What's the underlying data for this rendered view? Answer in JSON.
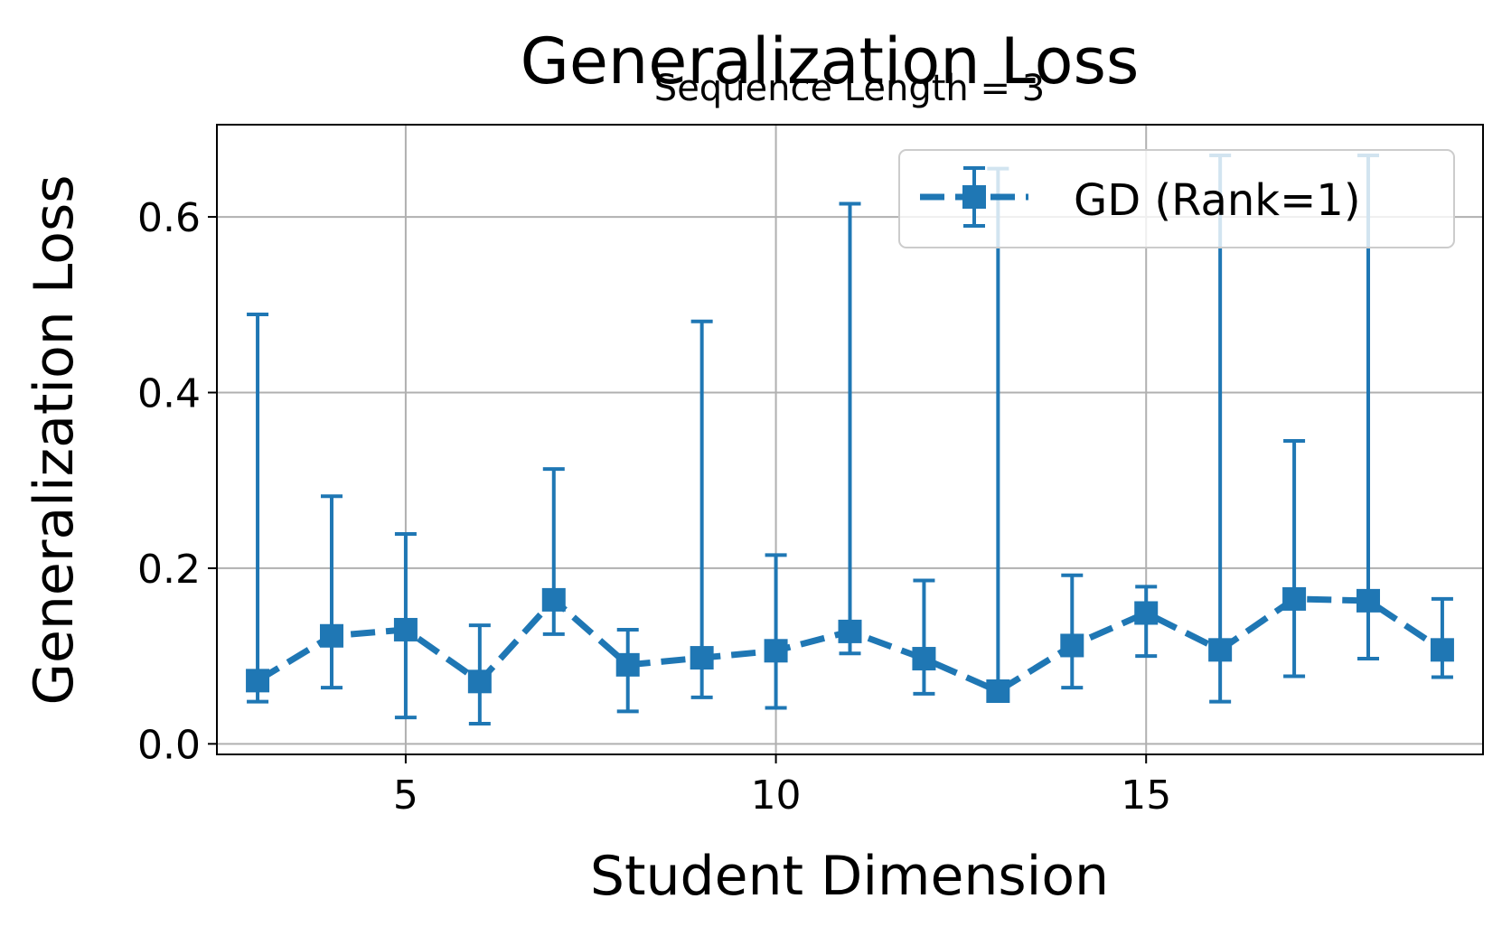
{
  "chart_data": {
    "type": "line",
    "title": "Generalization Loss",
    "subtitle": "Sequence Length = 3",
    "xlabel": "Student Dimension",
    "ylabel": "Generalization Loss",
    "xlim": [
      2.45,
      19.55
    ],
    "ylim": [
      -0.012,
      0.705
    ],
    "x_ticks": [
      5,
      10,
      15
    ],
    "x_tick_labels": [
      "5",
      "10",
      "15"
    ],
    "y_ticks": [
      0.0,
      0.2,
      0.4,
      0.6
    ],
    "y_tick_labels": [
      "0.0",
      "0.2",
      "0.4",
      "0.6"
    ],
    "grid": true,
    "legend_position": "top-right",
    "colors": {
      "series": "#1f77b4",
      "grid": "#b0b0b0",
      "axis": "#000000",
      "zero_line": "#b0b0b0"
    },
    "series": [
      {
        "name": "GD (Rank=1)",
        "marker": "square",
        "linestyle": "dashed",
        "x": [
          3,
          4,
          5,
          6,
          7,
          8,
          9,
          10,
          11,
          12,
          13,
          14,
          15,
          16,
          17,
          18,
          19
        ],
        "y": [
          0.072,
          0.123,
          0.13,
          0.071,
          0.164,
          0.09,
          0.098,
          0.106,
          0.128,
          0.097,
          0.06,
          0.112,
          0.149,
          0.107,
          0.165,
          0.163,
          0.107
        ],
        "y_low": [
          0.048,
          0.064,
          0.03,
          0.023,
          0.125,
          0.037,
          0.053,
          0.041,
          0.103,
          0.057,
          0.06,
          0.064,
          0.1,
          0.048,
          0.077,
          0.097,
          0.076
        ],
        "y_high": [
          0.489,
          0.282,
          0.239,
          0.135,
          0.313,
          0.13,
          0.481,
          0.215,
          0.615,
          0.186,
          0.655,
          0.192,
          0.179,
          0.67,
          0.345,
          0.67,
          0.165
        ]
      }
    ]
  }
}
